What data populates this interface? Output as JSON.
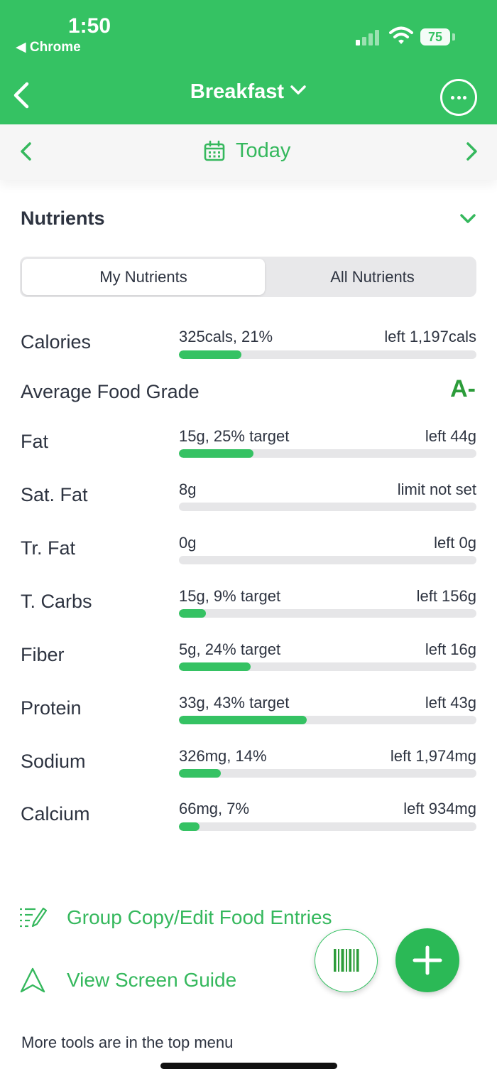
{
  "status": {
    "time": "1:50",
    "back_app": "◀ Chrome",
    "battery": "75"
  },
  "nav": {
    "title": "Breakfast"
  },
  "date": {
    "label": "Today"
  },
  "nutrients": {
    "title": "Nutrients",
    "tabs": [
      {
        "label": "My Nutrients",
        "active": true
      },
      {
        "label": "All Nutrients",
        "active": false
      }
    ],
    "rows": [
      {
        "label": "Calories",
        "value": "325cals, 21%",
        "right": "left 1,197cals",
        "progress": 0.21
      },
      {
        "label": "Fat",
        "value": "15g, 25% target",
        "right": "left 44g",
        "progress": 0.25
      },
      {
        "label": "Sat. Fat",
        "value": "8g",
        "right": "limit not set",
        "progress": 0
      },
      {
        "label": "Tr. Fat",
        "value": "0g",
        "right": "left 0g",
        "progress": 0
      },
      {
        "label": "T. Carbs",
        "value": "15g, 9% target",
        "right": "left 156g",
        "progress": 0.09
      },
      {
        "label": "Fiber",
        "value": "5g, 24% target",
        "right": "left 16g",
        "progress": 0.24
      },
      {
        "label": "Protein",
        "value": "33g, 43% target",
        "right": "left 43g",
        "progress": 0.43
      },
      {
        "label": "Sodium",
        "value": "326mg, 14%",
        "right": "left 1,974mg",
        "progress": 0.14
      },
      {
        "label": "Calcium",
        "value": "66mg, 7%",
        "right": "left 934mg",
        "progress": 0.07
      }
    ],
    "grade": {
      "label": "Average Food Grade",
      "value": "A-"
    }
  },
  "tools": {
    "group_copy": "Group Copy/Edit Food Entries",
    "screen_guide": "View Screen Guide",
    "footnote": "More tools are in the top menu"
  },
  "icons": {
    "nav_back": "chevron-left-icon",
    "title_dropdown": "chevron-down-icon",
    "more": "ellipsis-circle-icon",
    "calendar": "calendar-icon",
    "barcode": "barcode-icon",
    "add": "plus-icon",
    "edit_list": "edit-list-icon",
    "guide": "navigation-arrow-icon"
  },
  "colors": {
    "brand_green": "#35c263",
    "grade_green": "#2c9c3a",
    "text": "#2d3340",
    "track": "#e6e6e8"
  }
}
